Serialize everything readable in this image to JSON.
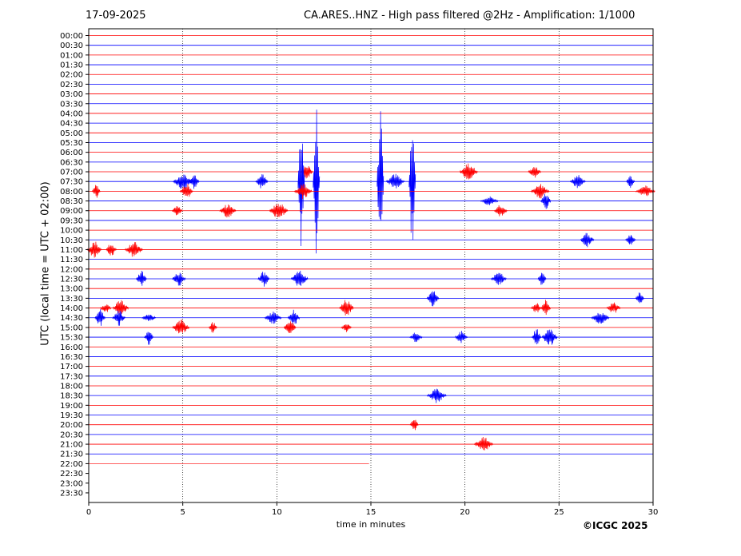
{
  "header": {
    "date": "17-09-2025",
    "title": "CA.ARES..HNZ - High pass filtered @2Hz - Amplification: 1/1000"
  },
  "footer": {
    "copyright": "©ICGC 2025"
  },
  "chart_data": {
    "type": "line",
    "ylabel": "UTC (local time = UTC + 02:00)",
    "xlabel": "time in minutes",
    "xlim": [
      0,
      30
    ],
    "x_ticks": [
      "0",
      "5",
      "10",
      "15",
      "20",
      "25",
      "30"
    ],
    "grid_vertical": true,
    "row_labels": [
      "00:00",
      "00:30",
      "01:00",
      "01:30",
      "02:00",
      "02:30",
      "03:00",
      "03:30",
      "04:00",
      "04:30",
      "05:00",
      "05:30",
      "06:00",
      "06:30",
      "07:00",
      "07:30",
      "08:00",
      "08:30",
      "09:00",
      "09:30",
      "10:00",
      "10:30",
      "11:00",
      "11:30",
      "12:00",
      "12:30",
      "13:00",
      "13:30",
      "14:00",
      "14:30",
      "15:00",
      "15:30",
      "16:00",
      "16:30",
      "17:00",
      "17:30",
      "18:00",
      "18:30",
      "19:00",
      "19:30",
      "20:00",
      "20:30",
      "21:00",
      "21:30",
      "22:00",
      "22:30",
      "23:00",
      "23:30"
    ],
    "colors": {
      "even": "#ff0000",
      "odd": "#0000ff"
    },
    "last_trace": {
      "row": "22:00",
      "end_minute": 14.9
    },
    "events": [
      {
        "row": "07:00",
        "t": [
          11.6,
          20.2,
          23.7
        ]
      },
      {
        "row": "07:30",
        "t": [
          5.0,
          5.6,
          9.2,
          11.3,
          12.1,
          15.5,
          16.3,
          17.2,
          26.0,
          28.8
        ]
      },
      {
        "row": "08:00",
        "t": [
          0.4,
          5.2,
          11.4,
          24.0,
          29.6
        ]
      },
      {
        "row": "08:30",
        "t": [
          21.3,
          24.3
        ]
      },
      {
        "row": "09:00",
        "t": [
          4.7,
          7.4,
          10.1,
          21.9
        ]
      },
      {
        "row": "10:30",
        "t": [
          26.5,
          28.8
        ]
      },
      {
        "row": "11:00",
        "t": [
          0.3,
          1.2,
          2.4
        ]
      },
      {
        "row": "12:30",
        "t": [
          2.8,
          4.8,
          9.3,
          11.2,
          21.8,
          24.1
        ]
      },
      {
        "row": "13:30",
        "t": [
          18.3,
          29.3
        ]
      },
      {
        "row": "14:00",
        "t": [
          0.9,
          1.7,
          13.7,
          23.8,
          24.3,
          27.9
        ]
      },
      {
        "row": "14:30",
        "t": [
          0.6,
          1.6,
          3.2,
          9.8,
          10.9,
          27.2
        ]
      },
      {
        "row": "15:00",
        "t": [
          4.9,
          6.6,
          10.7,
          13.7
        ]
      },
      {
        "row": "15:30",
        "t": [
          3.2,
          17.4,
          19.8,
          23.8,
          24.5
        ]
      },
      {
        "row": "18:30",
        "t": [
          18.5
        ]
      },
      {
        "row": "20:00",
        "t": [
          17.3
        ]
      },
      {
        "row": "21:00",
        "t": [
          21.0
        ]
      }
    ]
  }
}
